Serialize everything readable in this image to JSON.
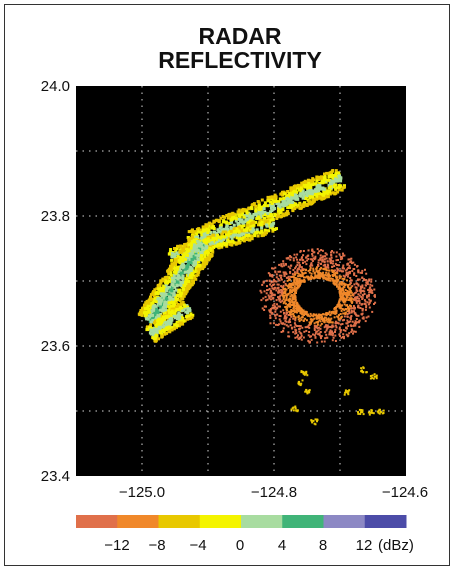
{
  "chart_data": {
    "type": "heatmap",
    "title": [
      "RADAR",
      "REFLECTIVITY"
    ],
    "x_ticks": [
      "−125.0",
      "−124.8",
      "−124.6"
    ],
    "y_ticks": [
      "24.0",
      "23.8",
      "23.6",
      "23.4"
    ],
    "xlim": [
      -125.1,
      -124.6
    ],
    "ylim": [
      23.4,
      24.0
    ],
    "grid": true,
    "background": "#000000",
    "grid_color": "#d8d8d8",
    "colorbar": {
      "units": "(dBz)",
      "labels": [
        "−12",
        "−8",
        "−4",
        "0",
        "4",
        "8",
        "12"
      ],
      "bins": [
        {
          "min": -16,
          "max": -12,
          "color": "#e0704a"
        },
        {
          "min": -12,
          "max": -8,
          "color": "#f0882a"
        },
        {
          "min": -8,
          "max": -4,
          "color": "#e8c800"
        },
        {
          "min": -4,
          "max": 0,
          "color": "#f4f400"
        },
        {
          "min": 0,
          "max": 4,
          "color": "#a8dca0"
        },
        {
          "min": 4,
          "max": 8,
          "color": "#40b478"
        },
        {
          "min": 8,
          "max": 12,
          "color": "#8c88c4"
        },
        {
          "min": 12,
          "max": 16,
          "color": "#4c4ca8"
        }
      ]
    },
    "echo_regions": [
      {
        "feature": "northern arm",
        "lon": [
          -124.94,
          -124.68
        ],
        "lat": [
          23.74,
          23.86
        ],
        "dBz_range": [
          -6,
          4
        ]
      },
      {
        "feature": "western cluster",
        "lon": [
          -125.0,
          -124.89
        ],
        "lat": [
          23.61,
          23.78
        ],
        "dBz_range": [
          -6,
          6
        ]
      },
      {
        "feature": "ring around clear center",
        "lon": [
          -124.82,
          -124.65
        ],
        "lat": [
          23.61,
          23.75
        ],
        "dBz_range": [
          -16,
          -8
        ]
      },
      {
        "feature": "scattered cells",
        "lon": [
          -124.77,
          -124.62
        ],
        "lat": [
          23.48,
          23.57
        ],
        "dBz_range": [
          -8,
          -4
        ]
      }
    ]
  }
}
